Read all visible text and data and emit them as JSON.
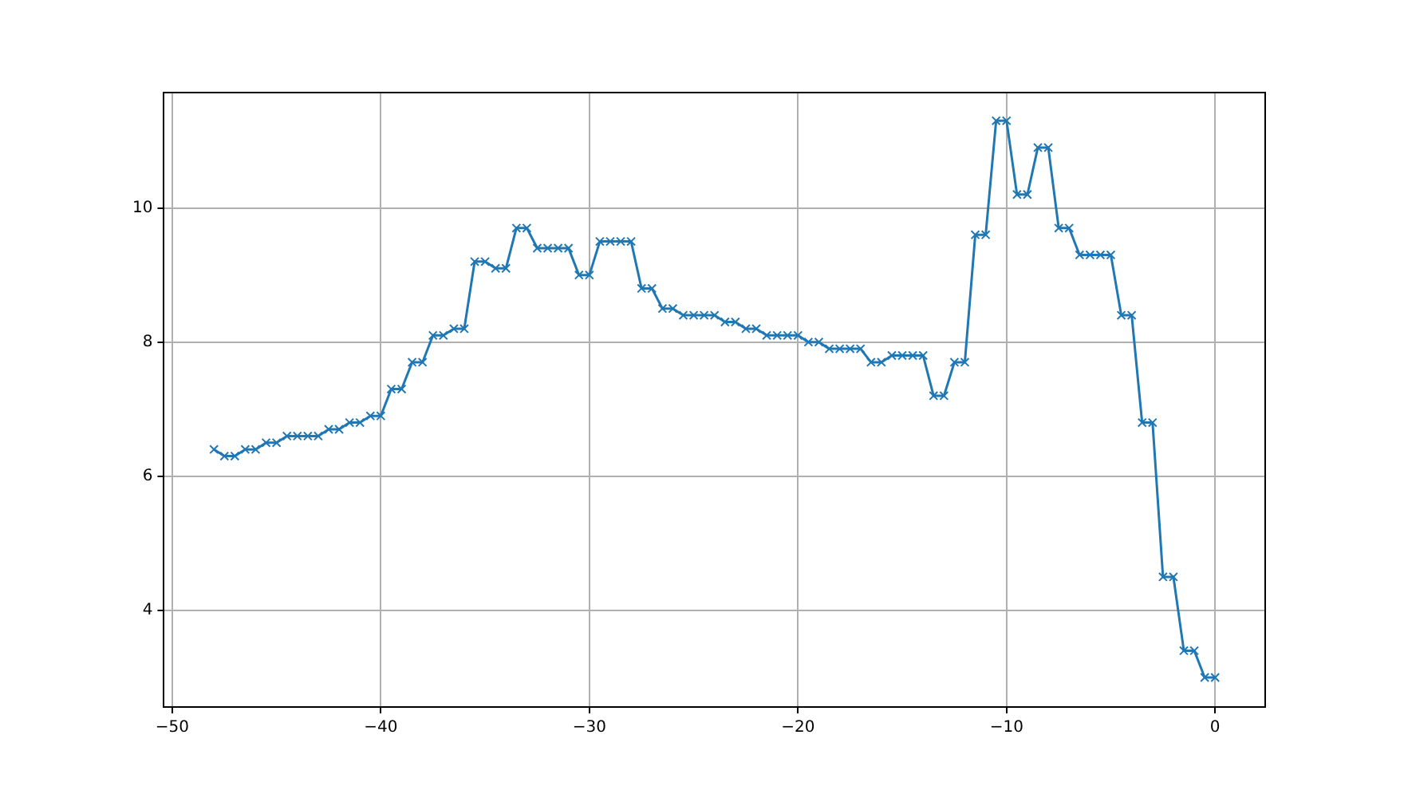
{
  "chart_data": {
    "type": "line",
    "x": [
      -48,
      -47.5,
      -47,
      -46.5,
      -46,
      -45.5,
      -45,
      -44.5,
      -44,
      -43.5,
      -43,
      -42.5,
      -42,
      -41.5,
      -41,
      -40.5,
      -40,
      -39.5,
      -39,
      -38.5,
      -38,
      -37.5,
      -37,
      -36.5,
      -36,
      -35.5,
      -35,
      -34.5,
      -34,
      -33.5,
      -33,
      -32.5,
      -32,
      -31.5,
      -31,
      -30.5,
      -30,
      -29.5,
      -29,
      -28.5,
      -28,
      -27.5,
      -27,
      -26.5,
      -26,
      -25.5,
      -25,
      -24.5,
      -24,
      -23.5,
      -23,
      -22.5,
      -22,
      -21.5,
      -21,
      -20.5,
      -20,
      -19.5,
      -19,
      -18.5,
      -18,
      -17.5,
      -17,
      -16.5,
      -16,
      -15.5,
      -15,
      -14.5,
      -14,
      -13.5,
      -13,
      -12.5,
      -12,
      -11.5,
      -11,
      -10.5,
      -10,
      -9.5,
      -9,
      -8.5,
      -8,
      -7.5,
      -7,
      -6.5,
      -6,
      -5.5,
      -5,
      -4.5,
      -4,
      -3.5,
      -3,
      -2.5,
      -2,
      -1.5,
      -1,
      -0.5,
      0
    ],
    "series": [
      {
        "color": "#1f77b4",
        "values": [
          6.4,
          6.3,
          6.3,
          6.4,
          6.4,
          6.5,
          6.5,
          6.6,
          6.6,
          6.6,
          6.6,
          6.7,
          6.7,
          6.8,
          6.8,
          6.9,
          6.9,
          7.3,
          7.3,
          7.7,
          7.7,
          8.1,
          8.1,
          8.2,
          8.2,
          9.2,
          9.2,
          9.1,
          9.1,
          9.7,
          9.7,
          9.4,
          9.4,
          9.4,
          9.4,
          9.0,
          9.0,
          9.5,
          9.5,
          9.5,
          9.5,
          8.8,
          8.8,
          8.5,
          8.5,
          8.4,
          8.4,
          8.4,
          8.4,
          8.3,
          8.3,
          8.2,
          8.2,
          8.1,
          8.1,
          8.1,
          8.1,
          8.0,
          8.0,
          7.9,
          7.9,
          7.9,
          7.9,
          7.7,
          7.7,
          7.8,
          7.8,
          7.8,
          7.8,
          7.2,
          7.2,
          7.7,
          7.7,
          9.6,
          9.6,
          11.3,
          11.3,
          10.2,
          10.2,
          10.9,
          10.9,
          9.7,
          9.7,
          9.3,
          9.3,
          9.3,
          9.3,
          8.4,
          8.4,
          6.8,
          6.8,
          4.5,
          4.5,
          3.4,
          3.4,
          3.0,
          3.0
        ]
      }
    ],
    "xlim": [
      -50.4,
      2.4
    ],
    "xticks": [
      -50,
      -40,
      -30,
      -20,
      -10,
      0
    ],
    "ylim": [
      2.56,
      11.72
    ],
    "yticks": [
      4,
      6,
      8,
      10
    ],
    "grid": true,
    "marker": "cross",
    "line_style": "solid",
    "legend": false
  }
}
